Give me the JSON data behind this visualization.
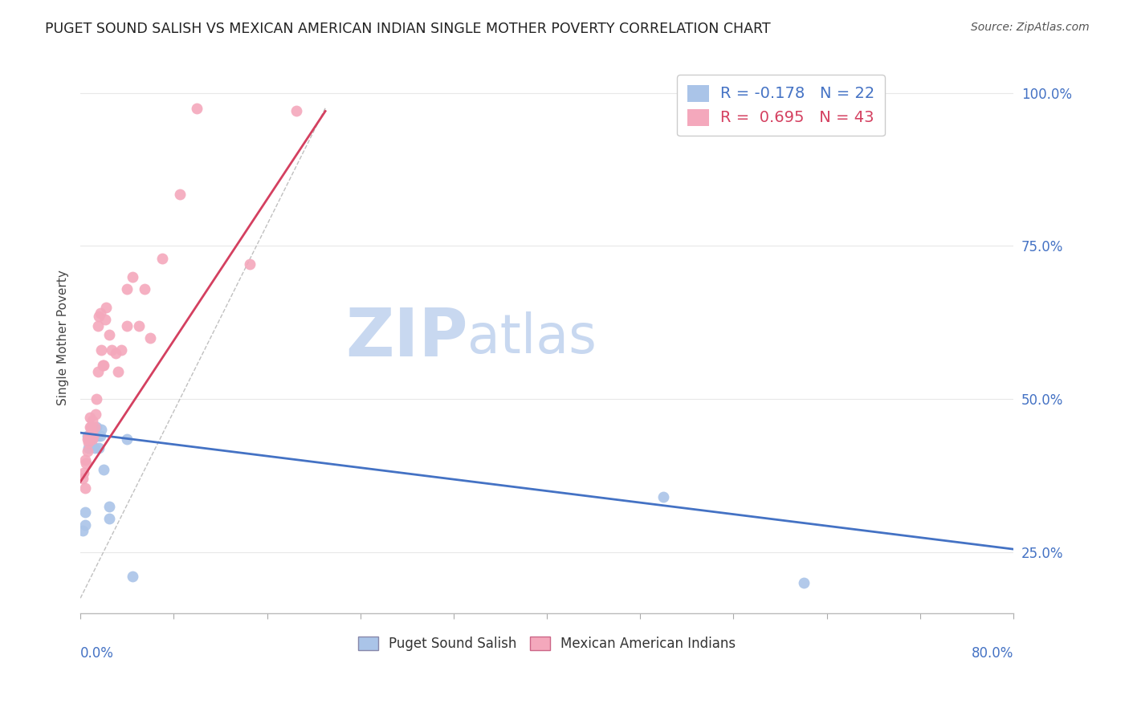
{
  "title": "PUGET SOUND SALISH VS MEXICAN AMERICAN INDIAN SINGLE MOTHER POVERTY CORRELATION CHART",
  "source": "Source: ZipAtlas.com",
  "ylabel": "Single Mother Poverty",
  "legend_blue_r": "R = -0.178",
  "legend_blue_n": "N = 22",
  "legend_pink_r": "R =  0.695",
  "legend_pink_n": "N = 43",
  "blue_color": "#aac4e8",
  "pink_color": "#f4a8bc",
  "blue_line_color": "#4472c4",
  "pink_line_color": "#d44060",
  "watermark_zip_color": "#c8d8f0",
  "watermark_atlas_color": "#c8d8f0",
  "background_color": "#ffffff",
  "grid_color": "#e8e8e8",
  "blue_scatter_x": [
    0.002,
    0.004,
    0.004,
    0.006,
    0.007,
    0.008,
    0.009,
    0.01,
    0.012,
    0.013,
    0.014,
    0.015,
    0.016,
    0.017,
    0.018,
    0.02,
    0.025,
    0.025,
    0.04,
    0.045,
    0.5,
    0.62
  ],
  "blue_scatter_y": [
    0.285,
    0.295,
    0.315,
    0.44,
    0.42,
    0.44,
    0.43,
    0.455,
    0.42,
    0.44,
    0.455,
    0.44,
    0.42,
    0.44,
    0.45,
    0.385,
    0.305,
    0.325,
    0.435,
    0.21,
    0.34,
    0.2
  ],
  "pink_scatter_x": [
    0.002,
    0.003,
    0.004,
    0.004,
    0.005,
    0.006,
    0.006,
    0.007,
    0.007,
    0.008,
    0.008,
    0.009,
    0.01,
    0.01,
    0.011,
    0.012,
    0.013,
    0.014,
    0.015,
    0.015,
    0.016,
    0.017,
    0.018,
    0.019,
    0.02,
    0.021,
    0.022,
    0.025,
    0.027,
    0.03,
    0.032,
    0.035,
    0.04,
    0.04,
    0.045,
    0.05,
    0.055,
    0.06,
    0.07,
    0.085,
    0.1,
    0.145,
    0.185
  ],
  "pink_scatter_y": [
    0.37,
    0.38,
    0.355,
    0.4,
    0.395,
    0.415,
    0.435,
    0.43,
    0.44,
    0.455,
    0.47,
    0.455,
    0.435,
    0.465,
    0.44,
    0.455,
    0.475,
    0.5,
    0.545,
    0.62,
    0.635,
    0.64,
    0.58,
    0.555,
    0.555,
    0.63,
    0.65,
    0.605,
    0.58,
    0.575,
    0.545,
    0.58,
    0.62,
    0.68,
    0.7,
    0.62,
    0.68,
    0.6,
    0.73,
    0.835,
    0.975,
    0.72,
    0.97
  ],
  "xlim": [
    0.0,
    0.8
  ],
  "ylim": [
    0.15,
    1.05
  ],
  "xticks": [
    0.0,
    0.08,
    0.16,
    0.24,
    0.32,
    0.4,
    0.48,
    0.56,
    0.64,
    0.72,
    0.8
  ],
  "ytick_positions": [
    0.25,
    0.5,
    0.75,
    1.0
  ],
  "ytick_labels": [
    "25.0%",
    "50.0%",
    "75.0%",
    "100.0%"
  ],
  "blue_line_x": [
    0.0,
    0.8
  ],
  "blue_line_y": [
    0.445,
    0.255
  ],
  "pink_line_x": [
    0.0,
    0.21
  ],
  "pink_line_y": [
    0.365,
    0.97
  ],
  "diag_line_x": [
    0.0,
    0.21
  ],
  "diag_line_y": [
    0.175,
    0.975
  ]
}
